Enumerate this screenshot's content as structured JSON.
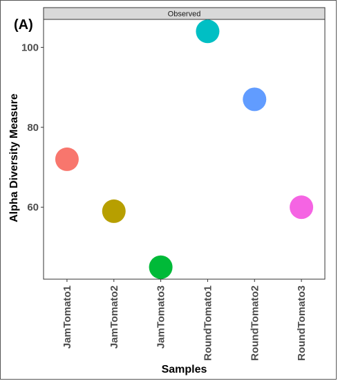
{
  "panel_label": "(A)",
  "chart_data": {
    "type": "scatter",
    "title": "",
    "facet_label": "Observed",
    "xlabel": "Samples",
    "ylabel": "Alpha Diversity Measure",
    "categories": [
      "JamTomato1",
      "JamTomato2",
      "JamTomato3",
      "RoundTomato1",
      "RoundTomato2",
      "RoundTomato3"
    ],
    "values": [
      72,
      59,
      45,
      104,
      87,
      60
    ],
    "colors": [
      "#F8766D",
      "#B79F00",
      "#00BA38",
      "#00BFC4",
      "#619CFF",
      "#F564E3"
    ],
    "ylim": [
      42,
      107
    ],
    "yticks": [
      60,
      80,
      100
    ],
    "grid": false,
    "legend": "none"
  }
}
